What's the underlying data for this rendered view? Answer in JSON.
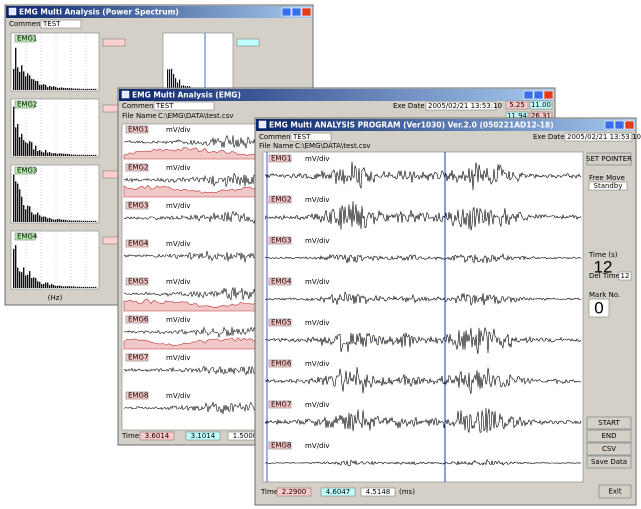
{
  "windows": [
    {
      "title": "EMG Multi Analysis (Power Spectrum)",
      "comment_label": "Comment",
      "comment": "TEST",
      "channels": [
        "EMG1",
        "EMG2",
        "EMG3",
        "EMG4"
      ],
      "axis_label": "(Hz)"
    },
    {
      "title": "EMG Multi Analysis (EMG)",
      "comment_label": "Comment",
      "comment": "TEST",
      "date_label": "Exe Date",
      "date": "2005/02/21 13:53:10",
      "file_label": "File Name",
      "file": "C:\\EMG\\DATA\\test.csv",
      "channels": [
        "EMG1",
        "EMG2",
        "EMG3",
        "EMG4",
        "EMG5",
        "EMG6",
        "EMG7",
        "EMG8"
      ],
      "channel_unit": "mV/div",
      "time_label": "Time",
      "times": [
        "3.6014",
        "3.1014",
        "1.5000"
      ],
      "side_values": [
        "5.25",
        "11.00",
        "11.94",
        "26.31"
      ]
    },
    {
      "title": "EMG Multi ANALYSIS PROGRAM (Ver1030)  Ver.2.0 (050221AD12-18)",
      "comment_label": "Comment",
      "comment": "TEST",
      "date_label": "Exe Date",
      "date": "2005/02/21 13:53:10",
      "file_label": "File Name",
      "file": "C:\\EMG\\DATA\\test.csv",
      "channels": [
        "EMG1",
        "EMG2",
        "EMG3",
        "EMG4",
        "EMG5",
        "EMG6",
        "EMG7",
        "EMG8"
      ],
      "channel_unit": "mV/div",
      "set_pointer": "SET POINTER",
      "free_move": "Free Move",
      "free_move_value": "Standby",
      "time_label": "Time (s)",
      "time_value": "12",
      "del_time_label": "Del Time",
      "del_time": "12",
      "mark_label": "Mark No.",
      "mark": "0",
      "buttons": [
        "START",
        "END",
        "CSV",
        "Save Data"
      ],
      "bottom_time_label": "Time",
      "times": [
        "2.2900",
        "4.6047",
        "4.5148"
      ],
      "unit": "(ms)",
      "exit": "Exit"
    }
  ]
}
